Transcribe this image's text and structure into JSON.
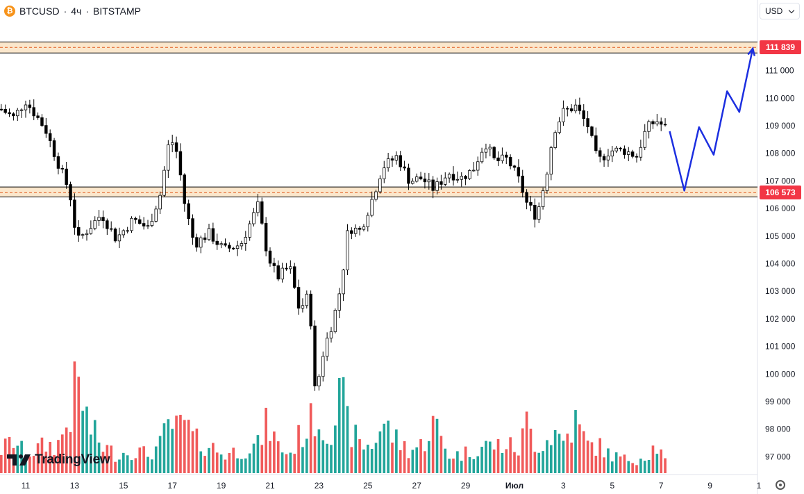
{
  "header": {
    "symbol": "BTCUSD",
    "sep1": "·",
    "interval": "4ч",
    "sep2": "·",
    "exchange": "BITSTAMP",
    "coin_icon": "bitcoin-icon"
  },
  "currency_selector": {
    "label": "USD",
    "icon": "chevron-down-icon"
  },
  "branding": {
    "logo_text": "TradingView",
    "logo_icon": "tradingview-logo-icon"
  },
  "settings_icon": "gear-icon",
  "colors": {
    "up": "#ffffff",
    "down": "#000000",
    "vol_up": "#22a59a",
    "vol_down": "#f05a5a",
    "zone_line": "#000000",
    "zone_dash": "#e15b1f",
    "zone_fill": "#fbe7cc",
    "tag_bg": "#f23645",
    "projection": "#1c2fe0"
  },
  "chart_data": {
    "type": "candlestick",
    "ylim": [
      96250,
      112500
    ],
    "y_ticks": [
      97000,
      98000,
      99000,
      100000,
      101000,
      102000,
      103000,
      104000,
      105000,
      106000,
      107000,
      108000,
      109000,
      110000,
      111000
    ],
    "y_tick_labels": [
      "97 000",
      "98 000",
      "99 000",
      "100 000",
      "101 000",
      "102 000",
      "103 000",
      "104 000",
      "105 000",
      "106 000",
      "107 000",
      "108 000",
      "109 000",
      "110 000",
      "111 000"
    ],
    "x_ticks": [
      {
        "label": "11",
        "day": 11
      },
      {
        "label": "13",
        "day": 13
      },
      {
        "label": "15",
        "day": 15
      },
      {
        "label": "17",
        "day": 17
      },
      {
        "label": "19",
        "day": 19
      },
      {
        "label": "21",
        "day": 21
      },
      {
        "label": "23",
        "day": 23
      },
      {
        "label": "25",
        "day": 25
      },
      {
        "label": "27",
        "day": 27
      },
      {
        "label": "29",
        "day": 29
      },
      {
        "label": "Июл",
        "day": 31
      },
      {
        "label": "3",
        "day": 33
      },
      {
        "label": "5",
        "day": 35
      },
      {
        "label": "7",
        "day": 37
      },
      {
        "label": "9",
        "day": 39
      },
      {
        "label": "1",
        "day": 41
      }
    ],
    "zones": [
      {
        "label": "111 839",
        "value": 111839,
        "top": 112040,
        "bottom": 111640
      },
      {
        "label": "106 573",
        "value": 106573,
        "top": 106780,
        "bottom": 106420
      }
    ],
    "anchors": [
      {
        "day": 10.0,
        "price": 109600,
        "v": 0.25
      },
      {
        "day": 10.5,
        "price": 109300,
        "v": 0.35
      },
      {
        "day": 11.0,
        "price": 109900,
        "v": 0.2
      },
      {
        "day": 11.8,
        "price": 108900,
        "v": 0.3
      },
      {
        "day": 12.3,
        "price": 107700,
        "v": 0.3
      },
      {
        "day": 12.8,
        "price": 106600,
        "v": 0.6
      },
      {
        "day": 13.1,
        "price": 104800,
        "v": 1.0
      },
      {
        "day": 13.6,
        "price": 105300,
        "v": 0.5
      },
      {
        "day": 14.1,
        "price": 105800,
        "v": 0.3
      },
      {
        "day": 14.7,
        "price": 104900,
        "v": 0.2
      },
      {
        "day": 15.4,
        "price": 105600,
        "v": 0.25
      },
      {
        "day": 16.0,
        "price": 105300,
        "v": 0.2
      },
      {
        "day": 16.5,
        "price": 106500,
        "v": 0.3
      },
      {
        "day": 16.9,
        "price": 108600,
        "v": 0.55
      },
      {
        "day": 17.2,
        "price": 108000,
        "v": 0.45
      },
      {
        "day": 17.5,
        "price": 106200,
        "v": 0.55
      },
      {
        "day": 17.9,
        "price": 104700,
        "v": 0.35
      },
      {
        "day": 18.5,
        "price": 105100,
        "v": 0.3
      },
      {
        "day": 19.1,
        "price": 104500,
        "v": 0.2
      },
      {
        "day": 19.8,
        "price": 104700,
        "v": 0.25
      },
      {
        "day": 20.5,
        "price": 106100,
        "v": 0.3
      },
      {
        "day": 20.9,
        "price": 104300,
        "v": 0.55
      },
      {
        "day": 21.3,
        "price": 103500,
        "v": 0.3
      },
      {
        "day": 21.8,
        "price": 103900,
        "v": 0.2
      },
      {
        "day": 22.2,
        "price": 102300,
        "v": 0.4
      },
      {
        "day": 22.6,
        "price": 102900,
        "v": 0.5
      },
      {
        "day": 22.85,
        "price": 99200,
        "v": 0.65
      },
      {
        "day": 23.2,
        "price": 100900,
        "v": 0.45
      },
      {
        "day": 23.6,
        "price": 102000,
        "v": 0.55
      },
      {
        "day": 23.9,
        "price": 103200,
        "v": 0.85
      },
      {
        "day": 24.2,
        "price": 105300,
        "v": 0.5
      },
      {
        "day": 24.7,
        "price": 105200,
        "v": 0.3
      },
      {
        "day": 25.2,
        "price": 106400,
        "v": 0.3
      },
      {
        "day": 25.6,
        "price": 107500,
        "v": 0.55
      },
      {
        "day": 26.2,
        "price": 107900,
        "v": 0.35
      },
      {
        "day": 26.7,
        "price": 107000,
        "v": 0.25
      },
      {
        "day": 27.2,
        "price": 107100,
        "v": 0.3
      },
      {
        "day": 27.7,
        "price": 106700,
        "v": 0.55
      },
      {
        "day": 28.3,
        "price": 107300,
        "v": 0.2
      },
      {
        "day": 28.8,
        "price": 107100,
        "v": 0.2
      },
      {
        "day": 29.3,
        "price": 107400,
        "v": 0.25
      },
      {
        "day": 29.8,
        "price": 108400,
        "v": 0.3
      },
      {
        "day": 30.2,
        "price": 107700,
        "v": 0.3
      },
      {
        "day": 30.7,
        "price": 107800,
        "v": 0.3
      },
      {
        "day": 31.2,
        "price": 107000,
        "v": 0.25
      },
      {
        "day": 31.5,
        "price": 106200,
        "v": 0.55
      },
      {
        "day": 31.9,
        "price": 105700,
        "v": 0.3
      },
      {
        "day": 32.3,
        "price": 107200,
        "v": 0.35
      },
      {
        "day": 32.6,
        "price": 108800,
        "v": 0.45
      },
      {
        "day": 33.0,
        "price": 109500,
        "v": 0.35
      },
      {
        "day": 33.5,
        "price": 109700,
        "v": 0.55
      },
      {
        "day": 34.0,
        "price": 109000,
        "v": 0.3
      },
      {
        "day": 34.4,
        "price": 107700,
        "v": 0.3
      },
      {
        "day": 34.9,
        "price": 108100,
        "v": 0.2
      },
      {
        "day": 35.5,
        "price": 108100,
        "v": 0.15
      },
      {
        "day": 36.0,
        "price": 107900,
        "v": 0.15
      },
      {
        "day": 36.4,
        "price": 108900,
        "v": 0.2
      },
      {
        "day": 36.8,
        "price": 109200,
        "v": 0.3
      },
      {
        "day": 37.2,
        "price": 108900,
        "v": 0.12
      }
    ],
    "projection": [
      {
        "day": 37.35,
        "price": 108800
      },
      {
        "day": 37.95,
        "price": 106650
      },
      {
        "day": 38.55,
        "price": 108950
      },
      {
        "day": 39.15,
        "price": 107950
      },
      {
        "day": 39.7,
        "price": 110250
      },
      {
        "day": 40.2,
        "price": 109500
      },
      {
        "day": 40.75,
        "price": 111800
      }
    ]
  }
}
